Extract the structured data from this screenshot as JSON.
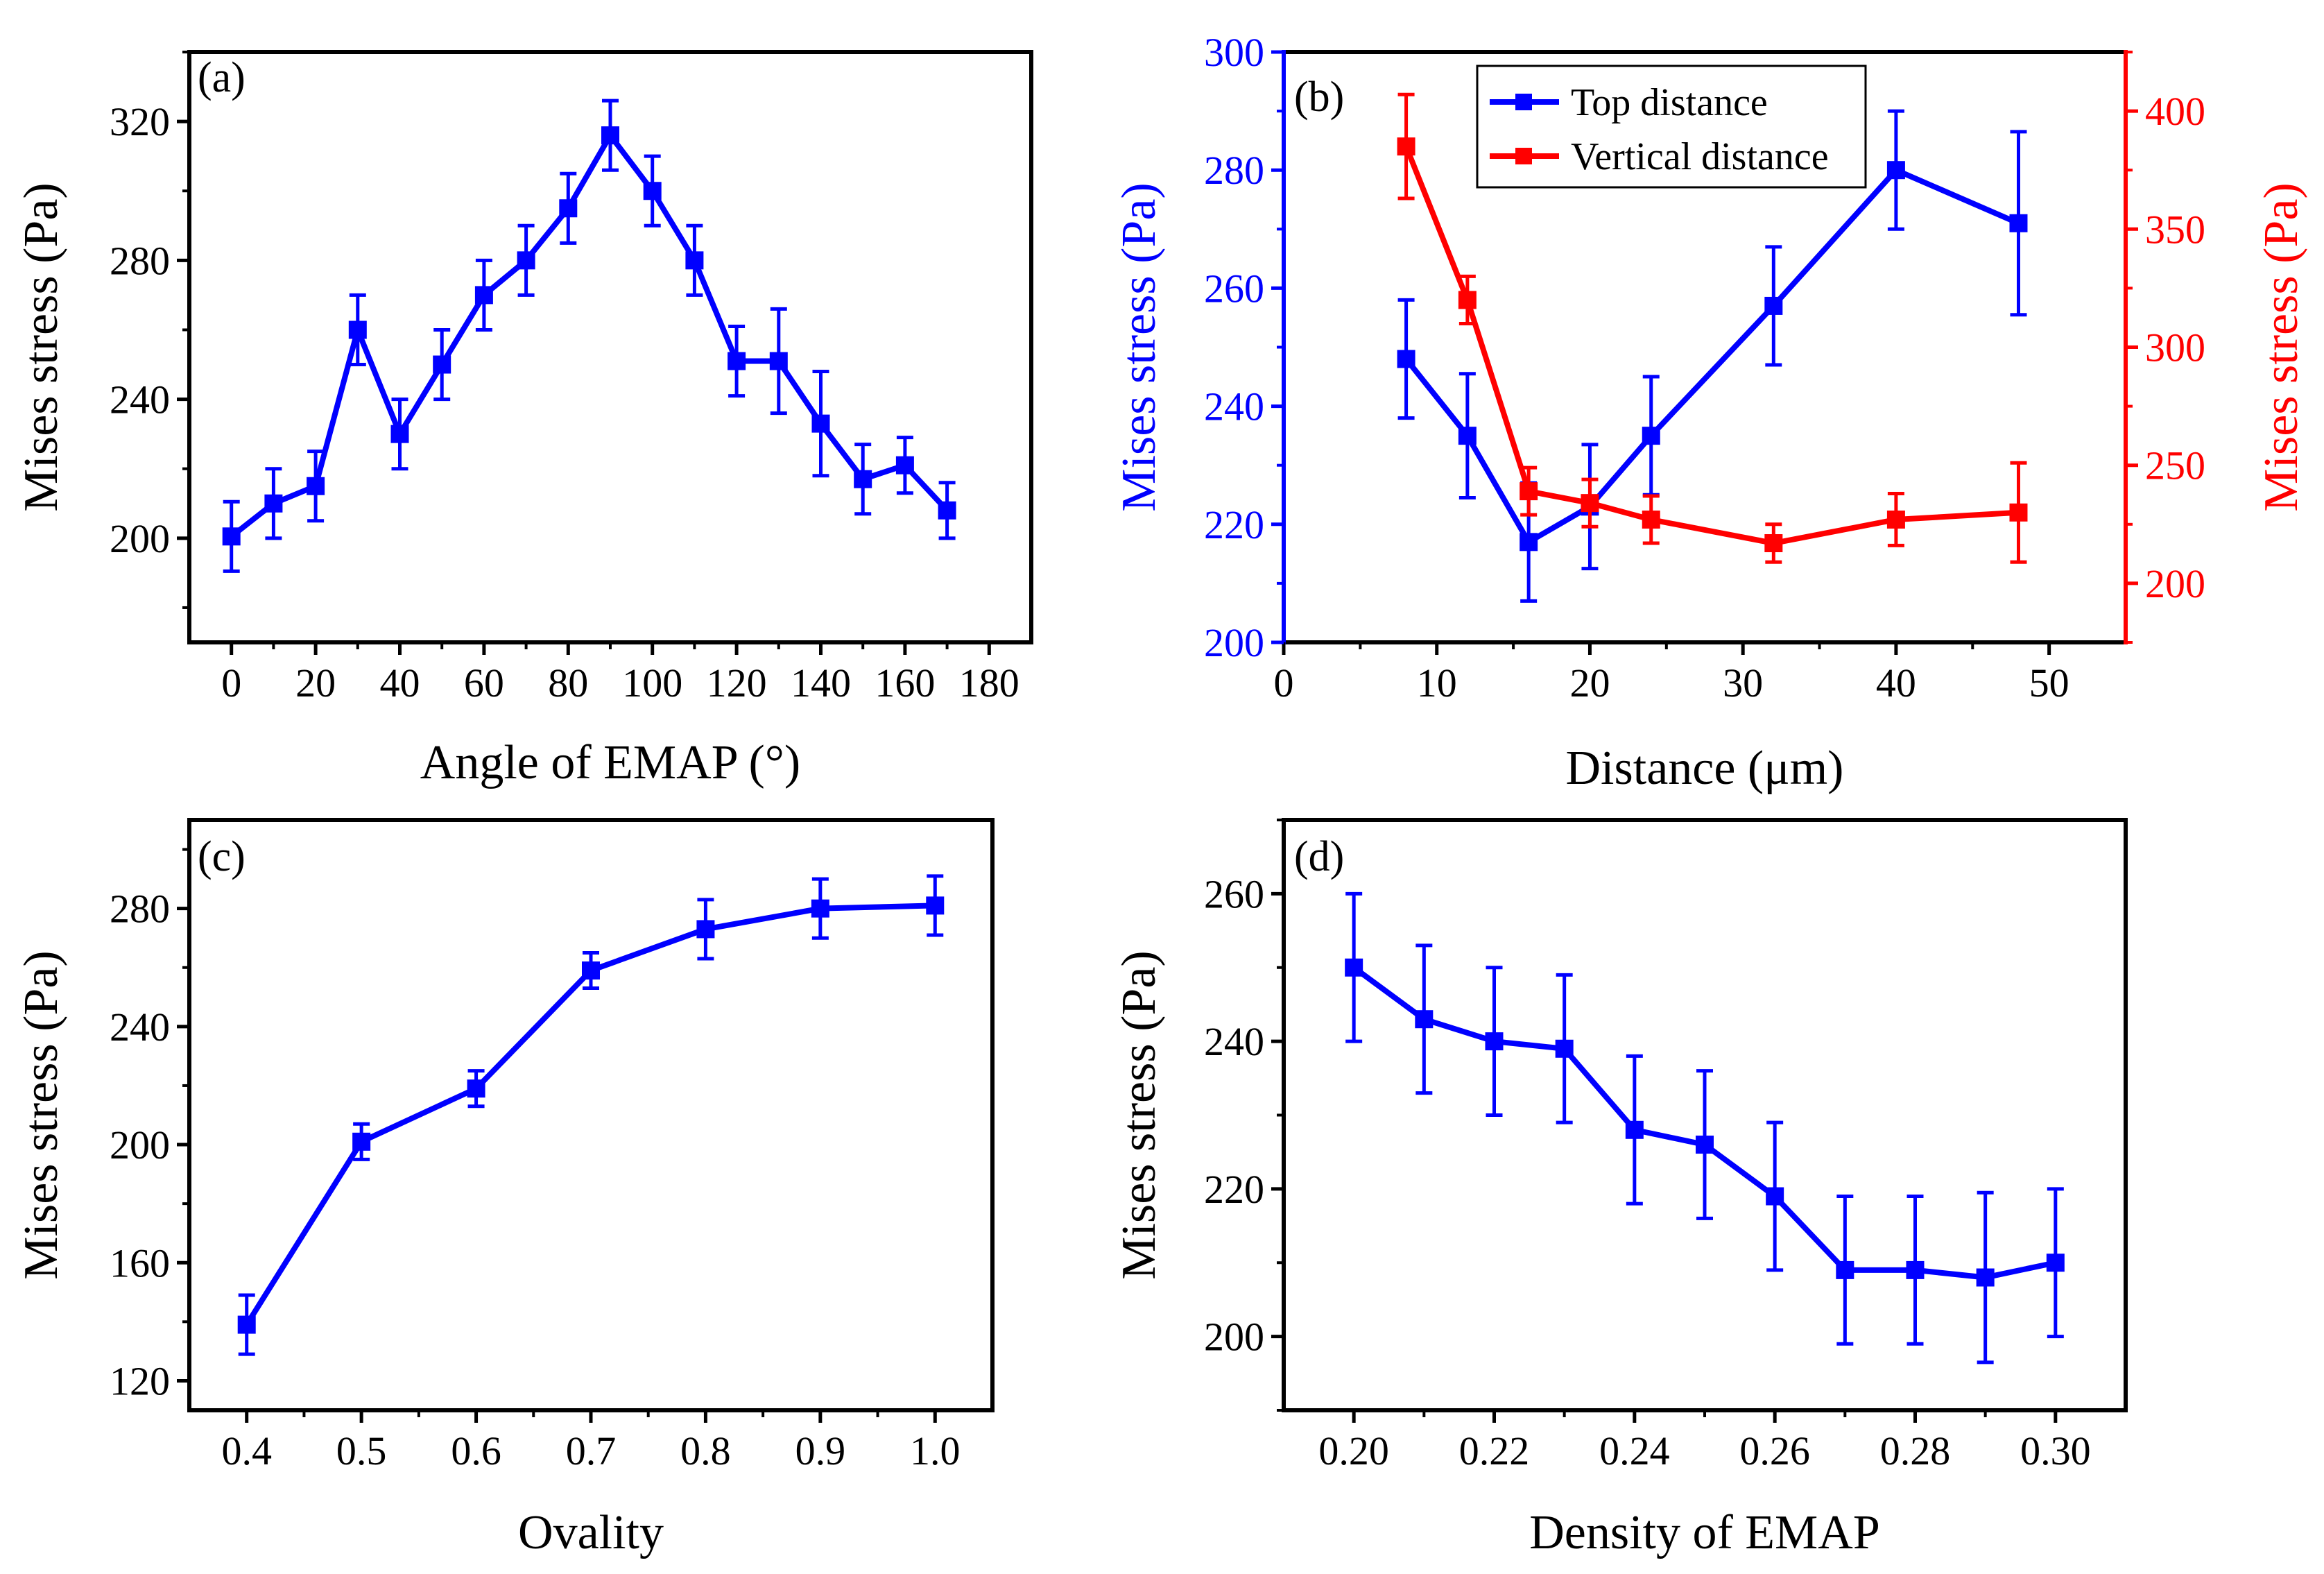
{
  "colors": {
    "blue": "#0000ff",
    "red": "#ff0000",
    "axis": "#000000"
  },
  "chart_data": [
    {
      "panel": "(a)",
      "type": "line",
      "xlabel": "Angle of EMAP (°)",
      "ylabel": "Mises stress (Pa)",
      "xlim": [
        -10,
        190
      ],
      "ylim": [
        170,
        340
      ],
      "xticks": [
        0,
        20,
        40,
        60,
        80,
        100,
        120,
        140,
        160,
        180
      ],
      "xtick_labels": [
        "0",
        "20",
        "40",
        "60",
        "80",
        "100",
        "120",
        "140",
        "160",
        "180"
      ],
      "yticks": [
        200,
        240,
        280,
        320
      ],
      "ytick_labels": [
        "200",
        "240",
        "280",
        "320"
      ],
      "series": [
        {
          "name": "Mises stress",
          "color": "#0000ff",
          "x": [
            0,
            10,
            20,
            30,
            40,
            50,
            60,
            70,
            80,
            90,
            100,
            110,
            120,
            130,
            140,
            150,
            160,
            170
          ],
          "y": [
            200.5,
            210,
            215,
            260,
            230,
            250,
            270,
            280,
            295,
            316,
            300,
            280,
            251,
            251,
            233,
            217,
            221,
            208
          ],
          "err": [
            10,
            10,
            10,
            10,
            10,
            10,
            10,
            10,
            10,
            10,
            10,
            10,
            10,
            15,
            15,
            10,
            8,
            8
          ]
        }
      ]
    },
    {
      "panel": "(b)",
      "type": "line",
      "xlabel": "Distance (μm)",
      "ylabel": "Mises stress (Pa)",
      "ylabel_right": "Mises stress (Pa)",
      "xlim": [
        0,
        55
      ],
      "ylim": [
        200,
        300
      ],
      "ylim_right": [
        175,
        425
      ],
      "xticks": [
        0,
        10,
        20,
        30,
        40,
        50
      ],
      "xtick_labels": [
        "0",
        "10",
        "20",
        "30",
        "40",
        "50"
      ],
      "yticks": [
        200,
        220,
        240,
        260,
        280,
        300
      ],
      "ytick_labels": [
        "200",
        "220",
        "240",
        "260",
        "280",
        "300"
      ],
      "yticks_right": [
        200,
        250,
        300,
        350,
        400
      ],
      "ytick_labels_right": [
        "200",
        "250",
        "300",
        "350",
        "400"
      ],
      "legend": {
        "position": "top-center",
        "entries": [
          "Top distance",
          "Vertical distance"
        ]
      },
      "series": [
        {
          "name": "Top distance",
          "color": "#0000ff",
          "axis": "left",
          "x": [
            8,
            12,
            16,
            20,
            24,
            32,
            40,
            48
          ],
          "y": [
            248,
            235,
            217,
            223,
            235,
            257,
            280,
            271
          ],
          "err": [
            10,
            10.5,
            10,
            10.5,
            10,
            10,
            10,
            15.5
          ]
        },
        {
          "name": "Vertical distance",
          "color": "#ff0000",
          "axis": "right",
          "x": [
            8,
            12,
            16,
            20,
            24,
            32,
            40,
            48
          ],
          "y": [
            385,
            320,
            239,
            234,
            227,
            217,
            227,
            230
          ],
          "err": [
            22,
            10,
            10,
            10,
            10,
            8,
            11,
            21
          ]
        }
      ]
    },
    {
      "panel": "(c)",
      "type": "line",
      "xlabel": "Ovality",
      "ylabel": "Mises stress (Pa)",
      "xlim": [
        0.35,
        1.05
      ],
      "ylim": [
        110,
        310
      ],
      "xticks": [
        0.4,
        0.5,
        0.6,
        0.7,
        0.8,
        0.9,
        1.0
      ],
      "xtick_labels": [
        "0.4",
        "0.5",
        "0.6",
        "0.7",
        "0.8",
        "0.9",
        "1.0"
      ],
      "yticks": [
        120,
        160,
        200,
        240,
        280
      ],
      "ytick_labels": [
        "120",
        "160",
        "200",
        "240",
        "280"
      ],
      "series": [
        {
          "name": "Mises stress",
          "color": "#0000ff",
          "x": [
            0.4,
            0.5,
            0.6,
            0.7,
            0.8,
            0.9,
            1.0
          ],
          "y": [
            139,
            201,
            219,
            259,
            273,
            280,
            281
          ],
          "err": [
            10,
            6,
            6,
            6,
            10,
            10,
            10
          ]
        }
      ]
    },
    {
      "panel": "(d)",
      "type": "line",
      "xlabel": "Density of EMAP",
      "ylabel": "Mises stress (Pa)",
      "xlim": [
        0.19,
        0.31
      ],
      "ylim": [
        190,
        270
      ],
      "xticks": [
        0.2,
        0.22,
        0.24,
        0.26,
        0.28,
        0.3
      ],
      "xtick_labels": [
        "0.20",
        "0.22",
        "0.24",
        "0.26",
        "0.28",
        "0.30"
      ],
      "yticks": [
        200,
        220,
        240,
        260
      ],
      "ytick_labels": [
        "200",
        "220",
        "240",
        "260"
      ],
      "series": [
        {
          "name": "Mises stress",
          "color": "#0000ff",
          "x": [
            0.2,
            0.21,
            0.22,
            0.23,
            0.24,
            0.25,
            0.26,
            0.27,
            0.28,
            0.29,
            0.3
          ],
          "y": [
            250,
            243,
            240,
            239,
            228,
            226,
            219,
            209,
            209,
            208,
            210
          ],
          "err": [
            10,
            10,
            10,
            10,
            10,
            10,
            10,
            10,
            10,
            11.5,
            10
          ]
        }
      ]
    }
  ]
}
